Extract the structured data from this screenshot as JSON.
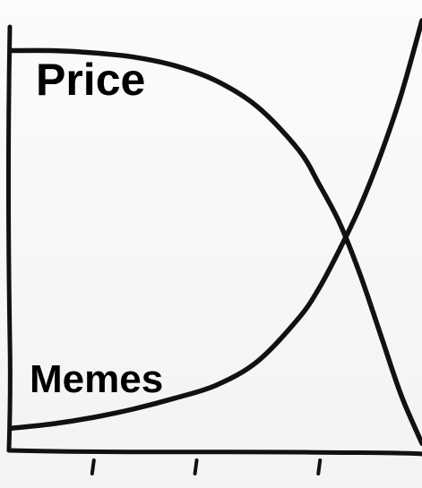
{
  "chart_data": {
    "type": "line",
    "title": "",
    "xlabel": "",
    "ylabel": "",
    "xlim": [
      0,
      10
    ],
    "ylim": [
      0,
      10
    ],
    "grid": false,
    "legend": "none",
    "x_ticks": [
      2,
      4.5,
      7.5
    ],
    "series": [
      {
        "name": "Price",
        "color": "#111111",
        "x": [
          0,
          1,
          2,
          3,
          4,
          5,
          6,
          7,
          7.5,
          8,
          8.5,
          9,
          9.5,
          10
        ],
        "y": [
          9.2,
          9.2,
          9.15,
          9.05,
          8.85,
          8.5,
          7.9,
          6.9,
          6.1,
          5.2,
          4.0,
          2.6,
          1.2,
          0.1
        ]
      },
      {
        "name": "Memes",
        "color": "#111111",
        "x": [
          0,
          1,
          2,
          3,
          4,
          5,
          6,
          7,
          7.5,
          8,
          8.5,
          9,
          9.5,
          10
        ],
        "y": [
          0.45,
          0.55,
          0.7,
          0.9,
          1.15,
          1.45,
          2.0,
          3.0,
          3.7,
          4.6,
          5.6,
          6.8,
          8.2,
          9.9
        ]
      }
    ]
  }
}
